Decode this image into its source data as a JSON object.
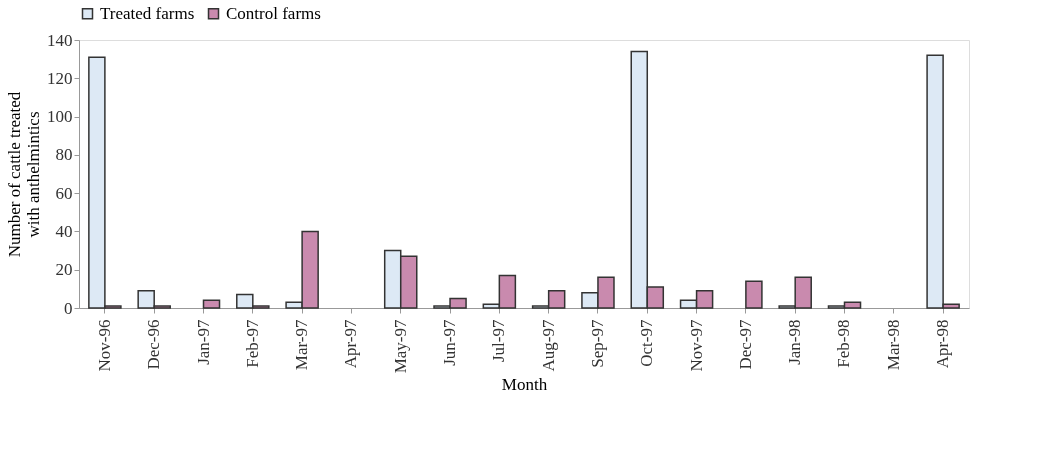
{
  "chart_data": {
    "type": "bar",
    "xlabel": "Month",
    "ylabel": "Number of cattle treated with anthelmintics",
    "categories": [
      "Nov-96",
      "Dec-96",
      "Jan-97",
      "Feb-97",
      "Mar-97",
      "Apr-97",
      "May-97",
      "Jun-97",
      "Jul-97",
      "Aug-97",
      "Sep-97",
      "Oct-97",
      "Nov-97",
      "Dec-97",
      "Jan-98",
      "Feb-98",
      "Mar-98",
      "Apr-98"
    ],
    "series": [
      {
        "name": "Treated farms",
        "color": "#dde9f5",
        "values": [
          131,
          9,
          null,
          7,
          3,
          null,
          30,
          1,
          2,
          1,
          8,
          134,
          4,
          null,
          1,
          1,
          null,
          132
        ]
      },
      {
        "name": "Control farms",
        "color": "#c98aae",
        "values": [
          1,
          1,
          4,
          1,
          40,
          null,
          27,
          5,
          17,
          9,
          16,
          11,
          9,
          14,
          16,
          3,
          null,
          2
        ]
      }
    ],
    "ylim": [
      0,
      140
    ],
    "yticks": [
      0,
      20,
      40,
      60,
      80,
      100,
      120,
      140
    ],
    "grid": false,
    "legend": "top"
  }
}
